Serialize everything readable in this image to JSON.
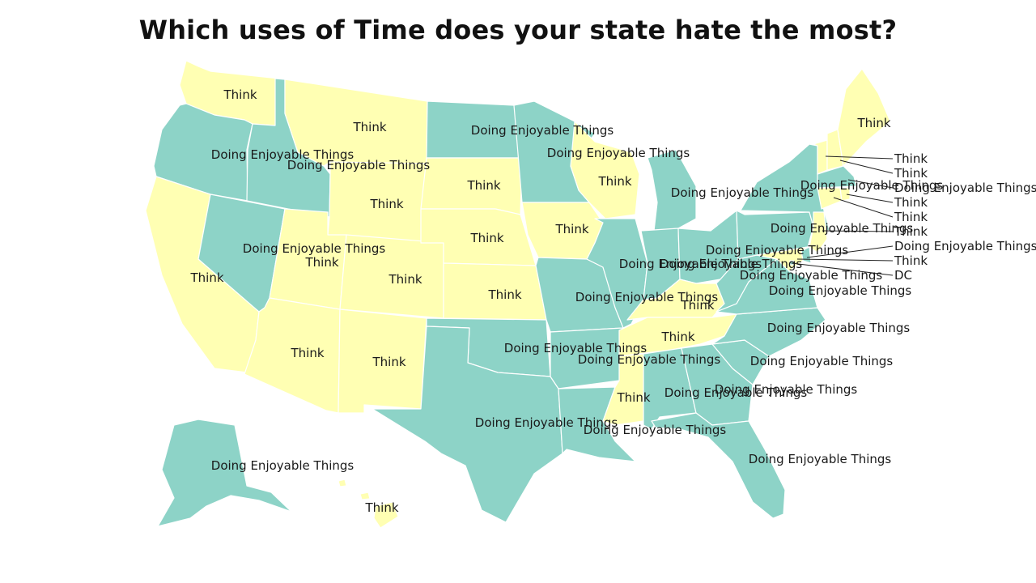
{
  "title": "Which uses of Time does your state hate the most?",
  "colors": {
    "think": "#ffffb3",
    "enjoy": "#8dd3c7",
    "label": "#1a1a1a",
    "background": "#ffffff"
  },
  "categories": {
    "think": "Think",
    "enjoy": "Doing Enjoyable Things"
  },
  "states": {
    "WA": "think",
    "OR": "enjoy",
    "CA": "think",
    "ID": "enjoy",
    "NV": "enjoy",
    "MT": "think",
    "WY": "think",
    "UT": "think",
    "AZ": "think",
    "CO": "think",
    "NM": "think",
    "ND": "enjoy",
    "SD": "think",
    "NE": "think",
    "KS": "think",
    "OK": "enjoy",
    "TX": "enjoy",
    "MN": "enjoy",
    "IA": "think",
    "MO": "enjoy",
    "AR": "enjoy",
    "LA": "enjoy",
    "WI": "think",
    "IL": "enjoy",
    "MI": "enjoy",
    "IN": "enjoy",
    "OH": "enjoy",
    "KY": "think",
    "TN": "think",
    "MS": "think",
    "AL": "enjoy",
    "GA": "enjoy",
    "FL": "enjoy",
    "SC": "enjoy",
    "NC": "enjoy",
    "VA": "enjoy",
    "WV": "enjoy",
    "PA": "enjoy",
    "NY": "enjoy",
    "VT": "think",
    "NH": "think",
    "ME": "think",
    "MA": "enjoy",
    "RI": "think",
    "CT": "think",
    "NJ": "think",
    "DE": "enjoy",
    "MD": "think",
    "DC": "enjoy",
    "AK": "enjoy",
    "HI": "think"
  },
  "callout_labels": {
    "dc": "DC"
  }
}
